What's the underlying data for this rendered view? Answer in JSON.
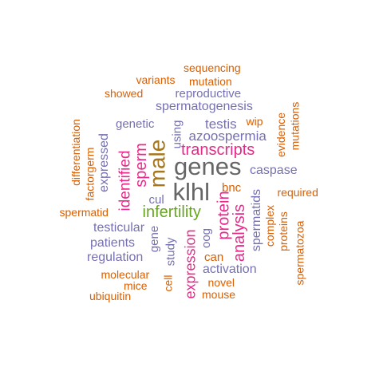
{
  "colors": {
    "orange": "#d95f02",
    "purple": "#7570b3",
    "magenta": "#e7298a",
    "green": "#66a61e",
    "gray": "#666666",
    "brown": "#a6761d"
  },
  "words": [
    {
      "id": "sequencing",
      "text": "sequencing",
      "color": "orange"
    },
    {
      "id": "variants",
      "text": "variants",
      "color": "orange"
    },
    {
      "id": "mutation",
      "text": "mutation",
      "color": "orange"
    },
    {
      "id": "showed",
      "text": "showed",
      "color": "orange"
    },
    {
      "id": "reproductive",
      "text": "reproductive",
      "color": "purple"
    },
    {
      "id": "spermatogenesis",
      "text": "spermatogenesis",
      "color": "purple"
    },
    {
      "id": "evidence",
      "text": "evidence",
      "color": "orange"
    },
    {
      "id": "mutations",
      "text": "mutations",
      "color": "orange"
    },
    {
      "id": "genetic",
      "text": "genetic",
      "color": "purple"
    },
    {
      "id": "testis",
      "text": "testis",
      "color": "purple"
    },
    {
      "id": "wip",
      "text": "wip",
      "color": "orange"
    },
    {
      "id": "differentiation",
      "text": "differentiation",
      "color": "orange"
    },
    {
      "id": "factorgerm",
      "text": "factorgerm",
      "color": "orange"
    },
    {
      "id": "expressed",
      "text": "expressed",
      "color": "purple"
    },
    {
      "id": "using",
      "text": "using",
      "color": "purple"
    },
    {
      "id": "azoospermia",
      "text": "azoospermia",
      "color": "purple"
    },
    {
      "id": "male",
      "text": "male",
      "color": "brown"
    },
    {
      "id": "sperm",
      "text": "sperm",
      "color": "magenta"
    },
    {
      "id": "identified",
      "text": "identified",
      "color": "magenta"
    },
    {
      "id": "transcripts",
      "text": "transcripts",
      "color": "magenta"
    },
    {
      "id": "genes",
      "text": "genes",
      "color": "gray"
    },
    {
      "id": "caspase",
      "text": "caspase",
      "color": "purple"
    },
    {
      "id": "klhl",
      "text": "klhl",
      "color": "gray"
    },
    {
      "id": "cul",
      "text": "cul",
      "color": "purple"
    },
    {
      "id": "bnc",
      "text": "bnc",
      "color": "orange"
    },
    {
      "id": "spermatids",
      "text": "spermatids",
      "color": "purple"
    },
    {
      "id": "required",
      "text": "required",
      "color": "orange"
    },
    {
      "id": "spermatid",
      "text": "spermatid",
      "color": "orange"
    },
    {
      "id": "infertility",
      "text": "infertility",
      "color": "green"
    },
    {
      "id": "protein",
      "text": "protein",
      "color": "magenta"
    },
    {
      "id": "complex",
      "text": "complex",
      "color": "orange"
    },
    {
      "id": "proteins",
      "text": "proteins",
      "color": "orange"
    },
    {
      "id": "testicular",
      "text": "testicular",
      "color": "purple"
    },
    {
      "id": "analysis",
      "text": "analysis",
      "color": "magenta"
    },
    {
      "id": "expression",
      "text": "expression",
      "color": "magenta"
    },
    {
      "id": "gene",
      "text": "gene",
      "color": "purple"
    },
    {
      "id": "oog",
      "text": "oog",
      "color": "purple"
    },
    {
      "id": "patients",
      "text": "patients",
      "color": "purple"
    },
    {
      "id": "study",
      "text": "study",
      "color": "purple"
    },
    {
      "id": "regulation",
      "text": "regulation",
      "color": "purple"
    },
    {
      "id": "can",
      "text": "can",
      "color": "orange"
    },
    {
      "id": "spermatozoa",
      "text": "spermatozoa",
      "color": "orange"
    },
    {
      "id": "activation",
      "text": "activation",
      "color": "purple"
    },
    {
      "id": "molecular",
      "text": "molecular",
      "color": "orange"
    },
    {
      "id": "cell",
      "text": "cell",
      "color": "orange"
    },
    {
      "id": "novel",
      "text": "novel",
      "color": "orange"
    },
    {
      "id": "mice",
      "text": "mice",
      "color": "orange"
    },
    {
      "id": "mouse",
      "text": "mouse",
      "color": "orange"
    },
    {
      "id": "ubiquitin",
      "text": "ubiquitin",
      "color": "orange"
    }
  ]
}
